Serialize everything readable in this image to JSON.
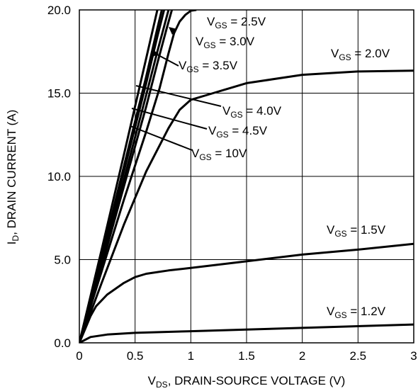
{
  "chart_data": {
    "type": "line",
    "xlabel_main": "V",
    "xlabel_sub": "DS",
    "xlabel_rest": ", DRAIN-SOURCE VOLTAGE (V)",
    "ylabel_main": "I",
    "ylabel_sub": "D",
    "ylabel_rest": ", DRAIN CURRENT (A)",
    "xlim": [
      0,
      3
    ],
    "ylim": [
      0,
      20
    ],
    "x_ticks": [
      {
        "value": 0,
        "label": "0"
      },
      {
        "value": 0.5,
        "label": "0.5"
      },
      {
        "value": 1,
        "label": "1"
      },
      {
        "value": 1.5,
        "label": "1.5"
      },
      {
        "value": 2,
        "label": "2"
      },
      {
        "value": 2.5,
        "label": "2.5"
      },
      {
        "value": 3,
        "label": "3"
      }
    ],
    "y_ticks": [
      {
        "value": 0,
        "label": "0.0"
      },
      {
        "value": 5,
        "label": "5.0"
      },
      {
        "value": 10,
        "label": "10.0"
      },
      {
        "value": 15,
        "label": "15.0"
      },
      {
        "value": 20,
        "label": "20.0"
      }
    ],
    "grid": true,
    "line_color": "#000000",
    "series": [
      {
        "v": "V",
        "sub": "GS",
        "rest": " = 1.2V",
        "x": [
          0,
          0.1,
          0.25,
          0.5,
          1,
          1.5,
          2,
          2.5,
          3
        ],
        "y": [
          0,
          0.35,
          0.5,
          0.6,
          0.7,
          0.8,
          0.9,
          1.0,
          1.1
        ]
      },
      {
        "v": "V",
        "sub": "GS",
        "rest": " = 1.5V",
        "x": [
          0,
          0.05,
          0.1,
          0.15,
          0.25,
          0.4,
          0.5,
          0.6,
          0.8,
          1,
          1.5,
          2,
          2.5,
          3
        ],
        "y": [
          0,
          0.8,
          1.6,
          2.2,
          2.9,
          3.6,
          3.95,
          4.15,
          4.35,
          4.5,
          4.9,
          5.3,
          5.6,
          5.95
        ]
      },
      {
        "v": "V",
        "sub": "GS",
        "rest": " = 2.0V",
        "x": [
          0,
          0.2,
          0.4,
          0.6,
          0.8,
          0.9,
          1.0,
          1.2,
          1.5,
          2.0,
          2.5,
          3.0
        ],
        "y": [
          0,
          3.6,
          7.1,
          10.3,
          12.9,
          14.0,
          14.6,
          15.0,
          15.6,
          16.1,
          16.3,
          16.35
        ]
      },
      {
        "v": "V",
        "sub": "GS",
        "rest": " = 2.5V",
        "x": [
          0,
          0.2,
          0.4,
          0.6,
          0.72,
          0.8,
          0.85,
          0.9,
          0.95,
          1.0,
          1.05
        ],
        "y": [
          0,
          4.3,
          8.6,
          12.7,
          15.3,
          17.4,
          18.6,
          19.3,
          19.7,
          19.95,
          20
        ]
      },
      {
        "v": "V",
        "sub": "GS",
        "rest": " = 3.0V",
        "x": [
          0,
          0.2,
          0.4,
          0.6,
          0.7,
          0.78,
          0.83
        ],
        "y": [
          0,
          4.6,
          9.4,
          14.2,
          16.8,
          18.8,
          20
        ]
      },
      {
        "v": "V",
        "sub": "GS",
        "rest": " = 3.5V",
        "x": [
          0,
          0.2,
          0.4,
          0.6,
          0.7,
          0.8
        ],
        "y": [
          0,
          4.8,
          9.8,
          14.9,
          17.5,
          20
        ]
      },
      {
        "v": "V",
        "sub": "GS",
        "rest": " = 4.0V",
        "x": [
          0,
          0.2,
          0.4,
          0.6,
          0.7,
          0.76
        ],
        "y": [
          0,
          5.1,
          10.3,
          15.6,
          18.4,
          20
        ]
      },
      {
        "v": "V",
        "sub": "GS",
        "rest": " = 4.5V",
        "x": [
          0,
          0.2,
          0.4,
          0.6,
          0.7,
          0.74
        ],
        "y": [
          0,
          5.2,
          10.6,
          16.0,
          18.9,
          20
        ]
      },
      {
        "v": "V",
        "sub": "GS",
        "rest": " = 10V",
        "x": [
          0,
          0.2,
          0.4,
          0.6,
          0.7
        ],
        "y": [
          0,
          5.6,
          11.3,
          17.1,
          20
        ]
      }
    ]
  }
}
